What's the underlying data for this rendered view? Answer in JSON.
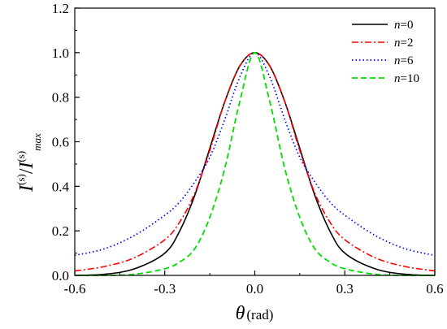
{
  "chart_data": {
    "type": "line",
    "xlabel": {
      "symbol": "θ",
      "unit": "(rad)"
    },
    "ylabel": {
      "numerator_base": "I",
      "numerator_sup": "(s)",
      "slash": "/",
      "denominator_base": "I",
      "denominator_sup": "(s)",
      "denominator_sub": "max"
    },
    "xlim": [
      -0.6,
      0.6
    ],
    "ylim": [
      0,
      1.2
    ],
    "xticks": [
      -0.6,
      -0.3,
      0.0,
      0.3,
      0.6
    ],
    "xtick_labels": [
      "-0.6",
      "-0.3",
      "0.0",
      "0.3",
      "0.6"
    ],
    "yticks": [
      0.0,
      0.2,
      0.4,
      0.6,
      0.8,
      1.0,
      1.2
    ],
    "ytick_labels": [
      "0.0",
      "0.2",
      "0.4",
      "0.6",
      "0.8",
      "1.0",
      "1.2"
    ],
    "grid": false,
    "legend_position": "top-right",
    "x": [
      -0.6,
      -0.5,
      -0.4,
      -0.3,
      -0.25,
      -0.2,
      -0.15,
      -0.1,
      -0.05,
      0.0,
      0.05,
      0.1,
      0.15,
      0.2,
      0.25,
      0.3,
      0.4,
      0.5,
      0.6
    ],
    "series": [
      {
        "name": "n=0",
        "legend_var": "n",
        "legend_val": "=0",
        "color": "#000000",
        "dash": "",
        "width": 1.6,
        "values": [
          0.0,
          0.005,
          0.03,
          0.1,
          0.2,
          0.36,
          0.57,
          0.78,
          0.94,
          1.0,
          0.94,
          0.78,
          0.57,
          0.36,
          0.2,
          0.1,
          0.03,
          0.005,
          0.0
        ]
      },
      {
        "name": "n=2",
        "legend_var": "n",
        "legend_val": "=2",
        "color": "#ff0000",
        "dash": "8,3,2,3",
        "width": 1.6,
        "values": [
          0.02,
          0.04,
          0.08,
          0.16,
          0.24,
          0.37,
          0.56,
          0.78,
          0.94,
          1.0,
          0.94,
          0.78,
          0.56,
          0.37,
          0.24,
          0.16,
          0.08,
          0.04,
          0.02
        ]
      },
      {
        "name": "n=6",
        "legend_var": "n",
        "legend_val": "=6",
        "color": "#0000ff",
        "dash": "1.5,3",
        "width": 1.7,
        "values": [
          0.09,
          0.12,
          0.18,
          0.27,
          0.33,
          0.42,
          0.53,
          0.7,
          0.89,
          1.0,
          0.89,
          0.7,
          0.53,
          0.42,
          0.33,
          0.27,
          0.18,
          0.12,
          0.09
        ]
      },
      {
        "name": "n=10",
        "legend_var": "n",
        "legend_val": "=10",
        "color": "#00dd00",
        "dash": "7,4",
        "width": 1.8,
        "values": [
          0.0,
          0.0,
          0.005,
          0.03,
          0.06,
          0.12,
          0.26,
          0.48,
          0.78,
          1.0,
          0.78,
          0.48,
          0.26,
          0.12,
          0.06,
          0.03,
          0.005,
          0.0,
          0.0
        ]
      }
    ]
  }
}
